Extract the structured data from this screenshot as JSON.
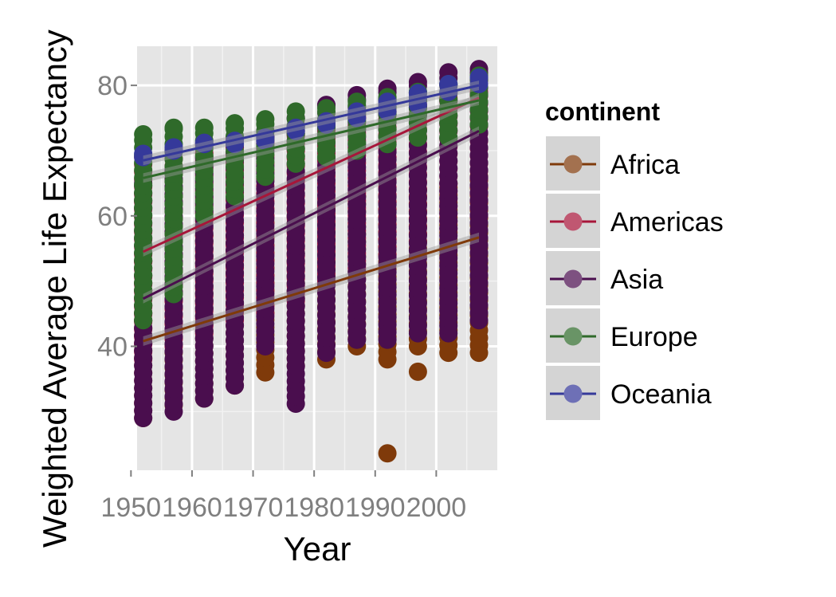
{
  "chart_data": {
    "type": "scatter",
    "xlabel": "Year",
    "ylabel": "Weighted Average Life Expectancy",
    "xlim": [
      1951,
      2010
    ],
    "ylim": [
      21,
      86
    ],
    "x_ticks": [
      1950,
      1960,
      1970,
      1980,
      1990,
      2000
    ],
    "x_tick_labels": [
      "1950",
      "1960",
      "1970",
      "1980",
      "1990",
      "2000"
    ],
    "y_ticks": [
      40,
      60,
      80
    ],
    "y_tick_labels": [
      "40",
      "60",
      "80"
    ],
    "years": [
      1952,
      1957,
      1962,
      1967,
      1972,
      1977,
      1982,
      1987,
      1992,
      1997,
      2002,
      2007
    ],
    "grid": true,
    "legend": {
      "title": "continent",
      "position": "right"
    },
    "series": [
      {
        "name": "Africa",
        "color": "#7f3a0a",
        "trend": {
          "x": [
            1952,
            2007
          ],
          "y": [
            40.8,
            56.7
          ]
        },
        "ranges": [
          [
            29,
            53
          ],
          [
            31,
            55
          ],
          [
            32,
            57
          ],
          [
            34,
            58
          ],
          [
            36,
            60
          ],
          [
            37,
            61
          ],
          [
            38,
            62
          ],
          [
            40,
            63
          ],
          [
            38,
            63
          ],
          [
            40,
            64
          ],
          [
            39,
            65
          ],
          [
            39,
            66
          ]
        ],
        "outliers": [
          {
            "x": 1992,
            "y": 23.6
          },
          {
            "x": 1997,
            "y": 36.1
          }
        ]
      },
      {
        "name": "Americas",
        "color": "#a7163a",
        "trend": {
          "x": [
            1952,
            2007
          ],
          "y": [
            54.5,
            78.1
          ]
        },
        "ranges": [
          [
            38,
            69
          ],
          [
            40,
            70
          ],
          [
            42,
            71
          ],
          [
            44,
            72
          ],
          [
            45,
            72
          ],
          [
            47,
            73
          ],
          [
            50,
            74
          ],
          [
            52,
            75
          ],
          [
            54,
            76
          ],
          [
            56,
            77
          ],
          [
            58,
            78
          ],
          [
            60,
            79
          ]
        ]
      },
      {
        "name": "Asia",
        "color": "#4a0e4e",
        "trend": {
          "x": [
            1952,
            2007
          ],
          "y": [
            47.3,
            73.0
          ]
        },
        "ranges": [
          [
            29,
            65
          ],
          [
            30,
            67
          ],
          [
            32,
            69
          ],
          [
            34,
            71
          ],
          [
            40,
            73
          ],
          [
            31.2,
            75
          ],
          [
            39,
            77
          ],
          [
            41,
            78.5
          ],
          [
            41,
            79.5
          ],
          [
            42,
            80.5
          ],
          [
            42,
            82
          ],
          [
            44,
            82.5
          ]
        ]
      },
      {
        "name": "Europe",
        "color": "#2f6a2a",
        "trend": {
          "x": [
            1952,
            2007
          ],
          "y": [
            65.8,
            77.7
          ]
        },
        "ranges": [
          [
            44,
            72.5
          ],
          [
            48,
            73.5
          ],
          [
            60,
            73.5
          ],
          [
            63,
            74.2
          ],
          [
            66,
            74.8
          ],
          [
            68,
            76
          ],
          [
            69,
            76.5
          ],
          [
            70,
            77.5
          ],
          [
            71,
            78.2
          ],
          [
            72,
            79
          ],
          [
            72,
            80.2
          ],
          [
            74,
            81.5
          ]
        ]
      },
      {
        "name": "Oceania",
        "color": "#35399a",
        "trend": {
          "x": [
            1952,
            2007
          ],
          "y": [
            68.5,
            80.0
          ]
        },
        "ranges": [
          [
            69,
            69.5
          ],
          [
            70,
            70.5
          ],
          [
            71,
            71.2
          ],
          [
            71,
            71.5
          ],
          [
            71.5,
            72
          ],
          [
            73,
            73.5
          ],
          [
            74,
            74.5
          ],
          [
            75,
            76
          ],
          [
            76,
            77.5
          ],
          [
            77,
            78.8
          ],
          [
            79,
            80.2
          ],
          [
            80.2,
            81.2
          ]
        ]
      }
    ]
  }
}
